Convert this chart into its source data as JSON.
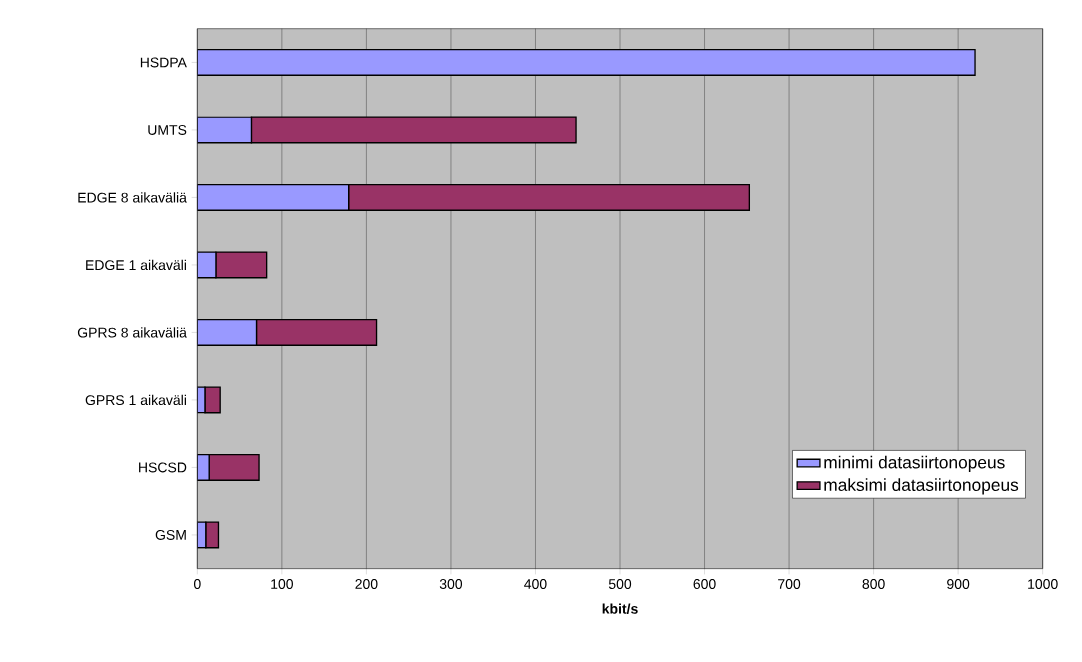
{
  "chart_data": {
    "type": "bar",
    "orientation": "horizontal",
    "stacked": true,
    "xlabel": "**kbit/s**",
    "categories": [
      "HSDPA",
      "UMTS",
      "EDGE 8 aikaväliä",
      "EDGE 1 aikaväli",
      "GPRS 8 aikaväliä",
      "GPRS 1 aikaväli",
      "HSCSD",
      "GSM"
    ],
    "series": [
      {
        "name": "minimi datasiirtonopeus",
        "color": "#9999ff",
        "values": [
          920,
          64,
          179,
          22,
          70,
          9,
          14,
          10
        ]
      },
      {
        "name": "maksimi datasiirtonopeus",
        "color": "#993366",
        "values": [
          null,
          384,
          474,
          60,
          142,
          18,
          59,
          15
        ]
      }
    ],
    "xlim": [
      0,
      1000
    ],
    "xticks": [
      0,
      100,
      200,
      300,
      400,
      500,
      600,
      700,
      800,
      900,
      1000
    ],
    "grid": "x",
    "legend": "bottom right"
  }
}
